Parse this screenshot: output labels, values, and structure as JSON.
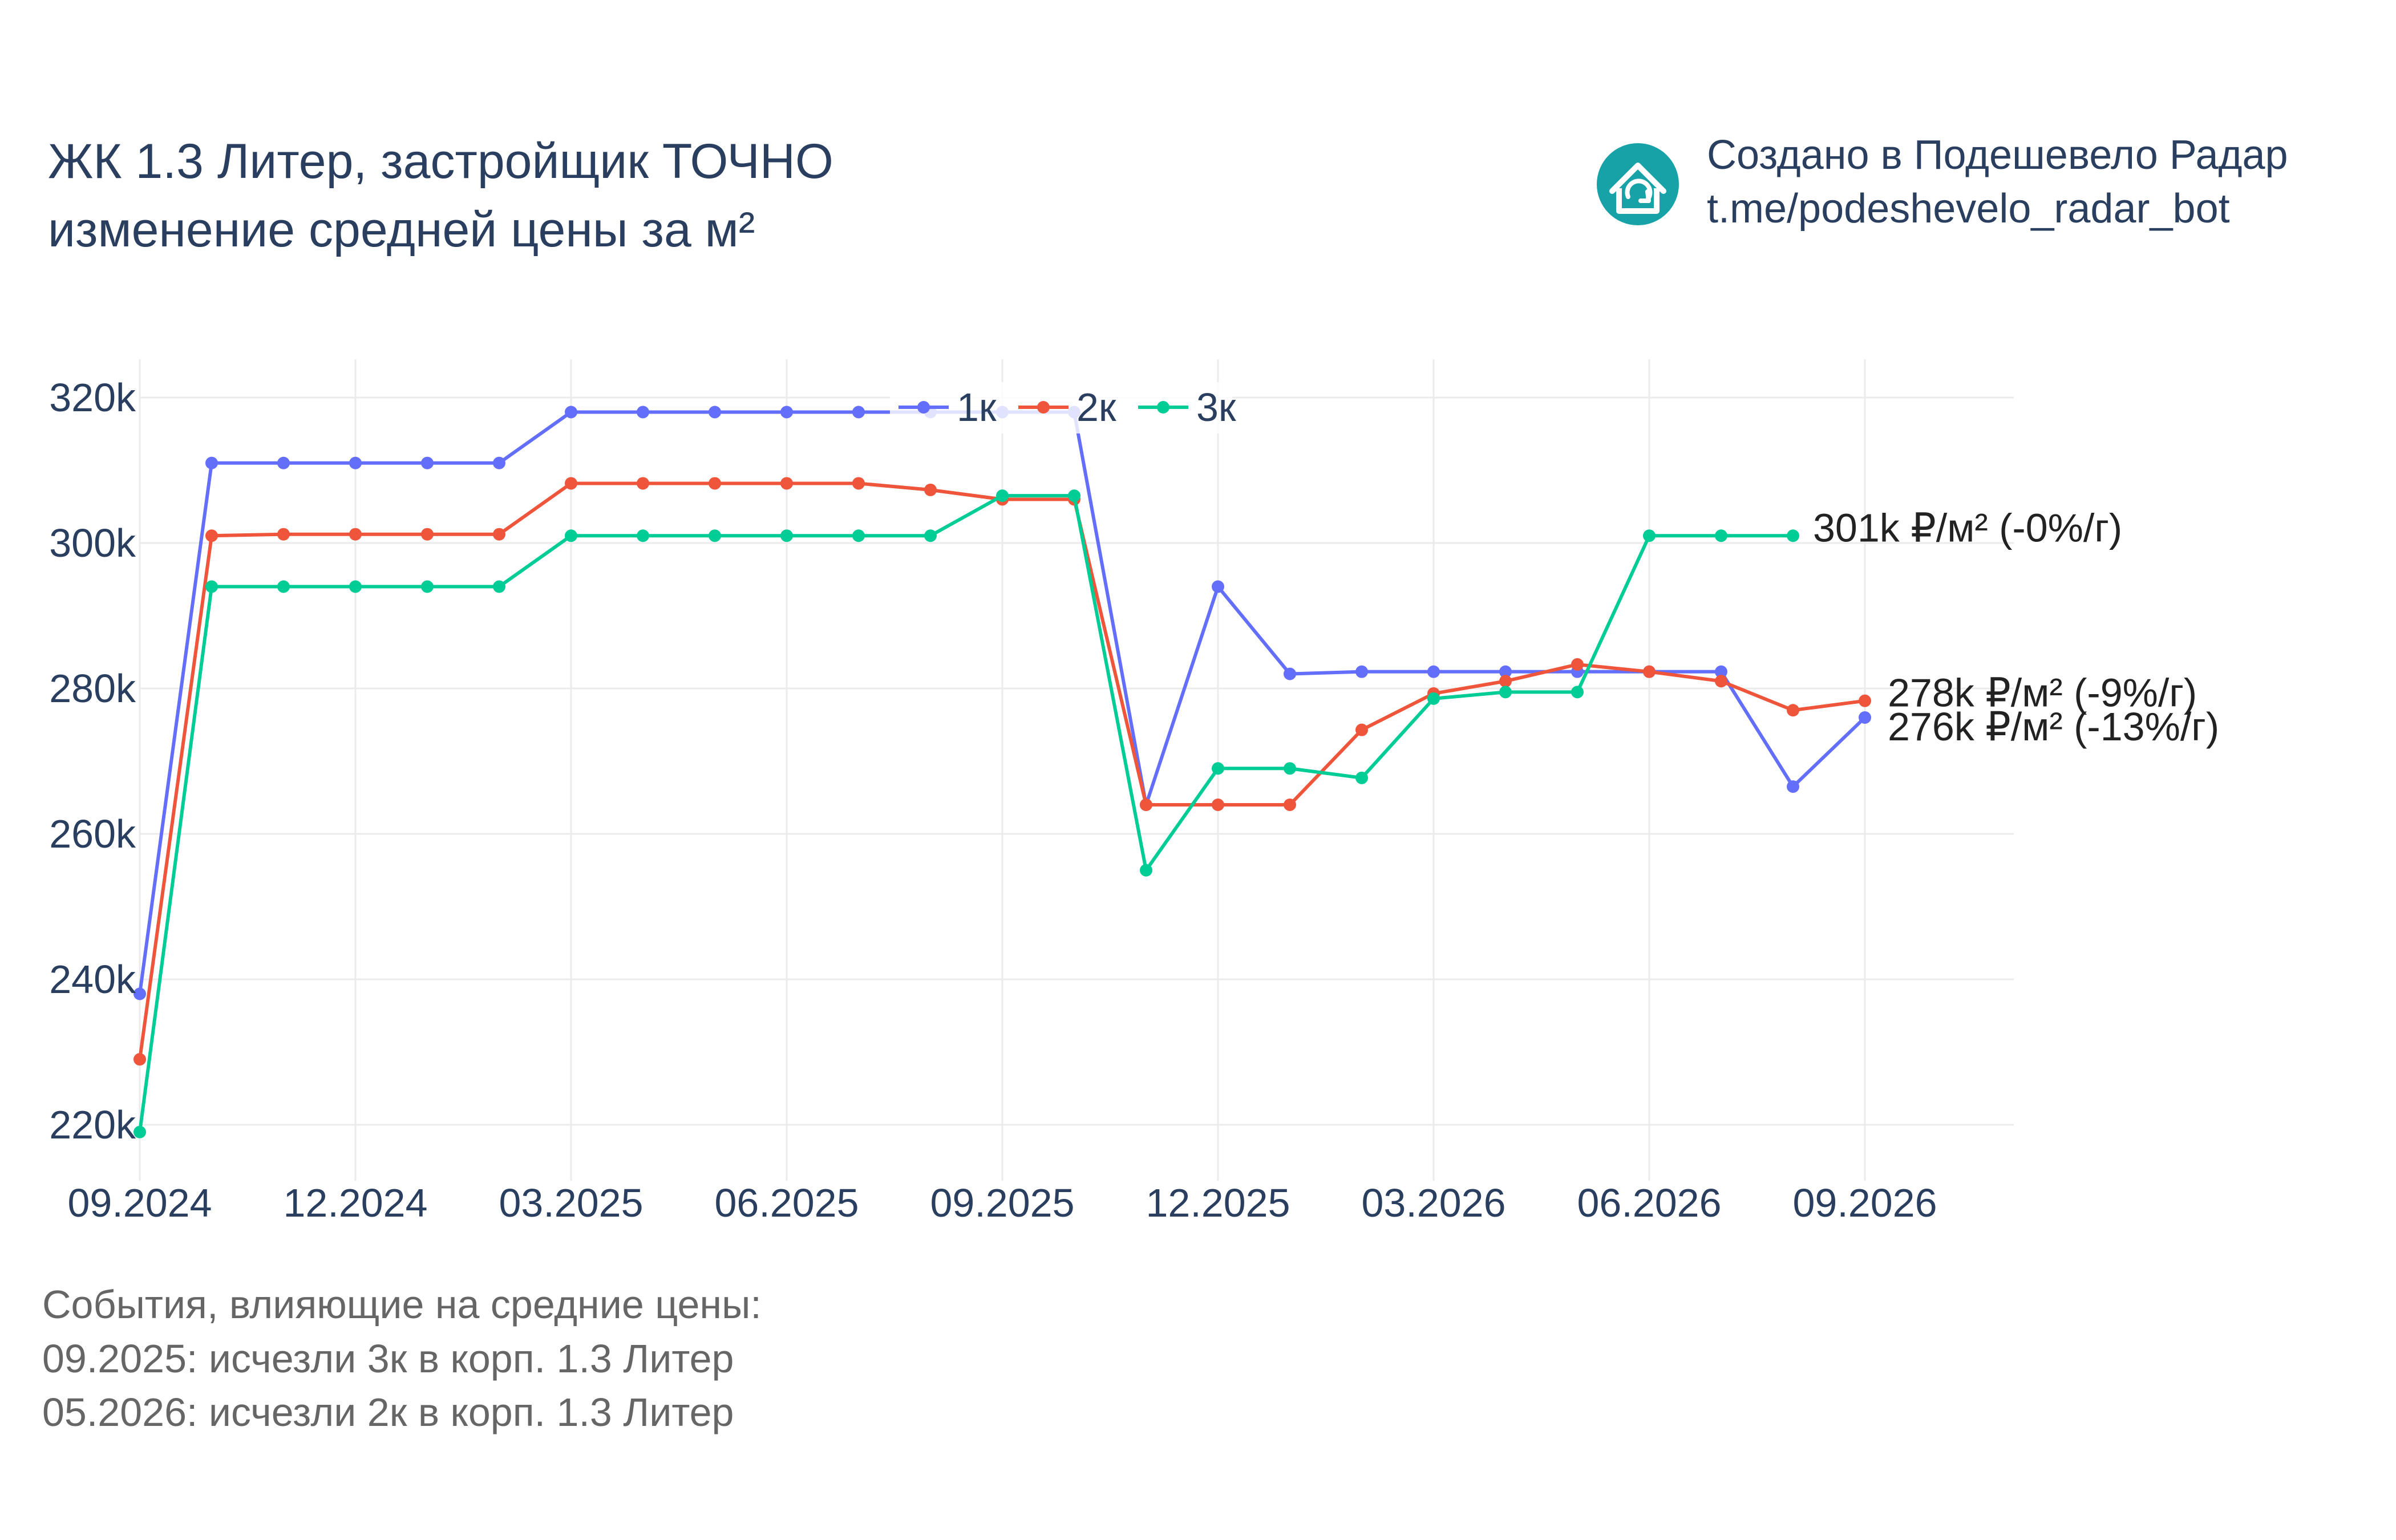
{
  "header": {
    "title_line1": "ЖК 1.3 Литер, застройщик ТОЧНО",
    "title_line2": "изменение средней цены за м²"
  },
  "credit": {
    "line1": "Создано в Подешевело Радар",
    "line2": "t.me/podeshevelo_radar_bot",
    "logo_icon": "house-refresh-icon",
    "logo_color": "#17a2a8"
  },
  "chart_data": {
    "type": "line",
    "x": [
      "2024-09",
      "2024-10",
      "2024-11",
      "2024-12",
      "2025-01",
      "2025-02",
      "2025-03",
      "2025-04",
      "2025-05",
      "2025-06",
      "2025-07",
      "2025-08",
      "2025-09",
      "2025-10",
      "2025-11",
      "2025-12",
      "2026-01",
      "2026-02",
      "2026-03",
      "2026-04",
      "2026-05",
      "2026-06",
      "2026-07",
      "2026-08",
      "2026-09"
    ],
    "x_ticks": [
      "09.2024",
      "12.2024",
      "03.2025",
      "06.2025",
      "09.2025",
      "12.2025",
      "03.2026",
      "06.2026",
      "09.2026"
    ],
    "x_tick_dates": [
      "2024-09",
      "2024-12",
      "2025-03",
      "2025-06",
      "2025-09",
      "2025-12",
      "2026-03",
      "2026-06",
      "2026-09"
    ],
    "ylim": [
      214000,
      324000
    ],
    "y_ticks": [
      220000,
      240000,
      260000,
      280000,
      300000,
      320000
    ],
    "y_tick_labels": [
      "220k",
      "240k",
      "260k",
      "280k",
      "300k",
      "320k"
    ],
    "grid": true,
    "legend_position": "top-center",
    "series": [
      {
        "name": "1к",
        "color": "#636efa",
        "values": [
          238000,
          311000,
          311000,
          311000,
          311000,
          311000,
          318000,
          318000,
          318000,
          318000,
          318000,
          318000,
          318000,
          318000,
          264000,
          294000,
          282000,
          282300,
          282300,
          282300,
          282300,
          282300,
          282300,
          266500,
          276000
        ],
        "end_label": "276k ₽/м² (-13%/г)"
      },
      {
        "name": "2к",
        "color": "#ef553b",
        "values": [
          229000,
          301000,
          301200,
          301200,
          301200,
          301200,
          308200,
          308200,
          308200,
          308200,
          308200,
          307300,
          306000,
          306000,
          264000,
          264000,
          264000,
          274300,
          279300,
          281000,
          283300,
          282300,
          281000,
          277000,
          278300
        ],
        "end_label": "278k ₽/м² (-9%/г)"
      },
      {
        "name": "3к",
        "color": "#00cc96",
        "values": [
          219000,
          294000,
          294000,
          294000,
          294000,
          294000,
          301000,
          301000,
          301000,
          301000,
          301000,
          301000,
          306500,
          306500,
          255000,
          269000,
          269000,
          267700,
          278600,
          279500,
          279500,
          301000,
          301000,
          301000,
          null
        ],
        "end_label": "301k ₽/м² (-0%/г)"
      }
    ]
  },
  "events": {
    "heading": "События, влияющие на средние цены:",
    "items": [
      "09.2025: исчезли 3к в корп. 1.3 Литер",
      "05.2026: исчезли 2к в корп. 1.3 Литер"
    ]
  }
}
